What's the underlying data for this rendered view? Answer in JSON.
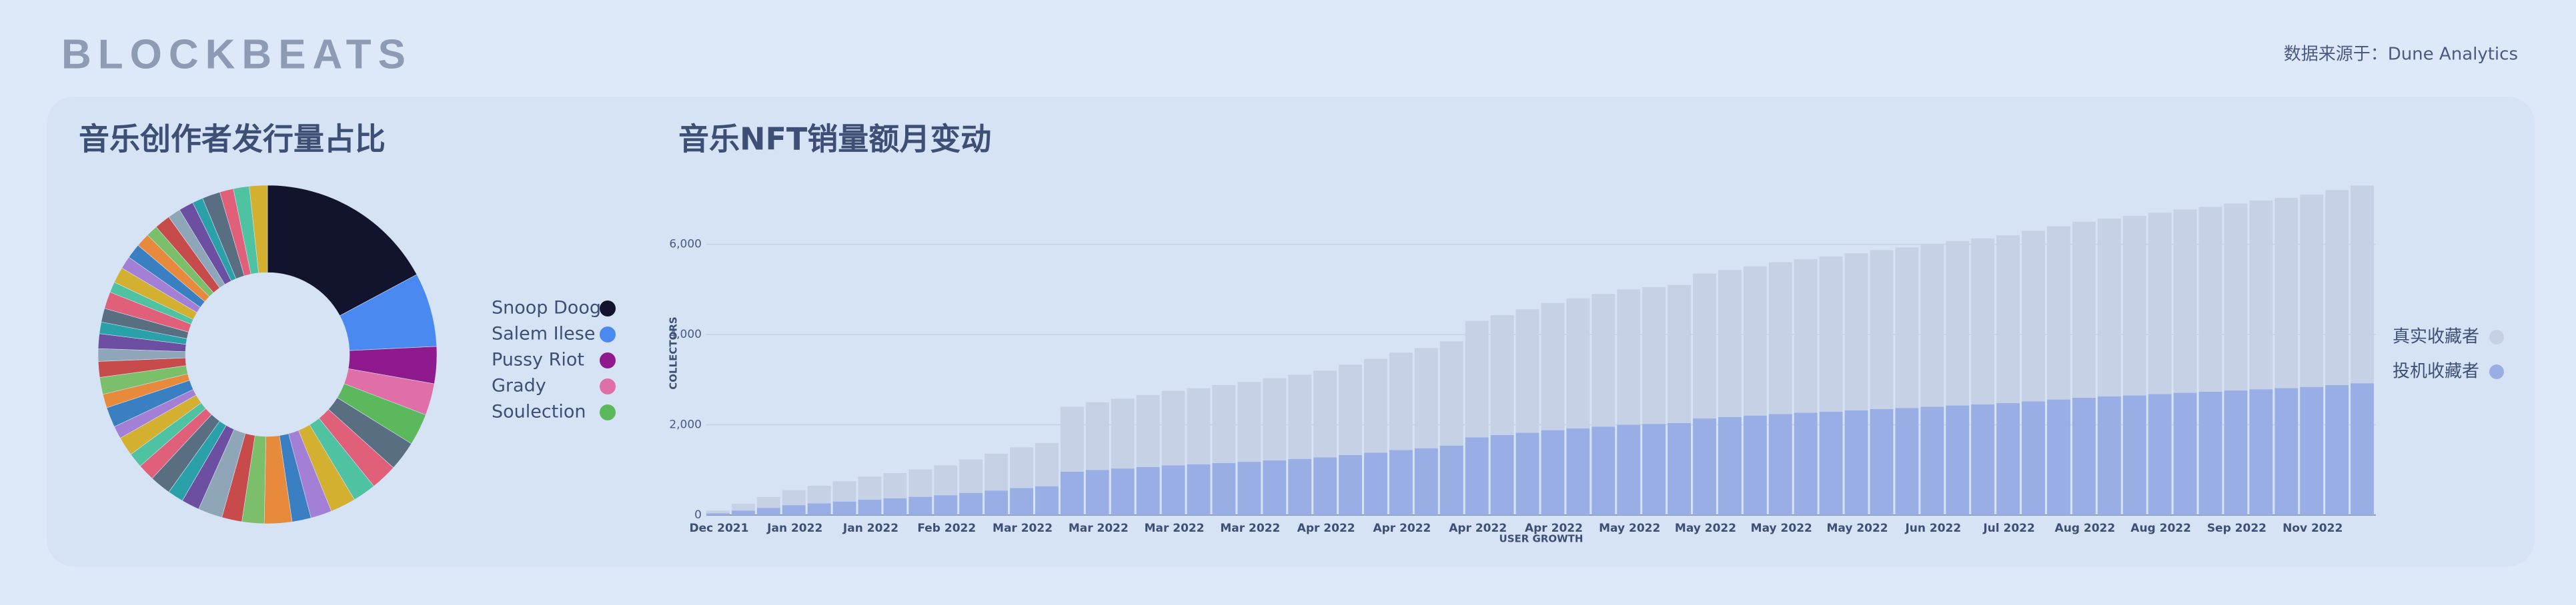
{
  "header": {
    "logo": "BLOCKBEATS",
    "source": "数据来源于：Dune Analytics"
  },
  "chart_data": [
    {
      "type": "pie",
      "title": "音乐创作者发行量占比",
      "donut": true,
      "categories": [
        "Snoop Doog",
        "Salem Ilese",
        "Pussy Riot",
        "Grady",
        "Soulection",
        null,
        null,
        null,
        null,
        null,
        null,
        null,
        null,
        null,
        null,
        null,
        null,
        null,
        null,
        null,
        null,
        null,
        null,
        null,
        null,
        null,
        null,
        null,
        null,
        null,
        null,
        null,
        null,
        null,
        null,
        null,
        null,
        null,
        null,
        null,
        null,
        null,
        null,
        null,
        null
      ],
      "values": [
        17,
        7,
        3.5,
        3,
        3,
        2.8,
        2.5,
        2.2,
        2.4,
        2,
        1.8,
        2.6,
        2.1,
        1.9,
        2.3,
        1.7,
        1.5,
        2,
        1.6,
        1.4,
        1.8,
        1.2,
        1.9,
        1.3,
        1.6,
        1.5,
        1.2,
        1.4,
        1.1,
        1.3,
        1.6,
        1.0,
        1.5,
        1.2,
        1.4,
        1.3,
        1.1,
        1.5,
        1.2,
        1.4,
        1.0,
        1.7,
        1.3,
        1.5,
        1.7
      ],
      "colors": [
        "#12142e",
        "#4a8af0",
        "#8e1a8e",
        "#e06fa8",
        "#5cb85c"
      ],
      "palette": [
        "#5a6e82",
        "#e0607a",
        "#4fc3a1",
        "#d4b030",
        "#a37fd6",
        "#3a7fc1",
        "#e88a3c",
        "#7bbf6a",
        "#c84b4b",
        "#8fa6b8",
        "#6c4fa0",
        "#2aa0a8"
      ]
    },
    {
      "type": "bar",
      "title": "音乐NFT销量额月变动",
      "y_label": "COLLECTORS",
      "x_label": "USER GROWTH",
      "stacked": true,
      "grid": true,
      "legend": "right",
      "categories": [
        "Dec 2021",
        null,
        null,
        "Jan 2022",
        null,
        null,
        "Jan 2022",
        null,
        null,
        "Feb 2022",
        null,
        null,
        "Mar 2022",
        null,
        null,
        "Mar 2022",
        null,
        null,
        "Mar 2022",
        null,
        null,
        "Mar 2022",
        null,
        null,
        "Apr 2022",
        null,
        null,
        "Apr 2022",
        null,
        null,
        "Apr 2022",
        null,
        null,
        "Apr 2022",
        null,
        null,
        "May 2022",
        null,
        null,
        "May 2022",
        null,
        null,
        "May 2022",
        null,
        null,
        "May 2022",
        null,
        null,
        "Jun 2022",
        null,
        null,
        "Jul 2022",
        null,
        null,
        "Aug 2022",
        null,
        null,
        "Aug 2022",
        null,
        null,
        "Sep 2022",
        null,
        null,
        "Nov 2022",
        null,
        null
      ],
      "ylim": [
        0,
        7500
      ],
      "yticks": [
        0,
        {
          "value": 2000,
          "label": "2,000"
        },
        {
          "value": 4000,
          "label": "4,000"
        },
        {
          "value": 6000,
          "label": "6,000"
        }
      ],
      "series": [
        {
          "name": "投机收藏者",
          "color": "#9aaee6",
          "values": [
            40,
            100,
            160,
            220,
            260,
            300,
            340,
            372,
            404,
            440,
            492,
            544,
            600,
            640,
            960,
            1000,
            1032,
            1064,
            1100,
            1124,
            1152,
            1180,
            1212,
            1244,
            1280,
            1332,
            1384,
            1440,
            1480,
            1540,
            1720,
            1772,
            1824,
            1880,
            1920,
            1960,
            2000,
            2020,
            2040,
            2140,
            2172,
            2204,
            2240,
            2268,
            2292,
            2320,
            2348,
            2372,
            2400,
            2428,
            2452,
            2480,
            2520,
            2560,
            2600,
            2628,
            2652,
            2680,
            2708,
            2732,
            2760,
            2788,
            2812,
            2840,
            2880,
            2920
          ]
        },
        {
          "name": "真实收藏者",
          "color": "#c6d1e6",
          "values": [
            60,
            150,
            240,
            330,
            390,
            450,
            510,
            558,
            606,
            660,
            738,
            816,
            900,
            960,
            1440,
            1500,
            1548,
            1596,
            1650,
            1686,
            1728,
            1770,
            1818,
            1866,
            1920,
            1998,
            2076,
            2160,
            2220,
            2310,
            2580,
            2658,
            2736,
            2820,
            2880,
            2940,
            3000,
            3030,
            3060,
            3210,
            3258,
            3306,
            3360,
            3402,
            3438,
            3480,
            3522,
            3558,
            3600,
            3642,
            3678,
            3720,
            3780,
            3840,
            3900,
            3942,
            3978,
            4020,
            4062,
            4098,
            4140,
            4182,
            4218,
            4260,
            4320,
            4380
          ]
        }
      ]
    }
  ]
}
